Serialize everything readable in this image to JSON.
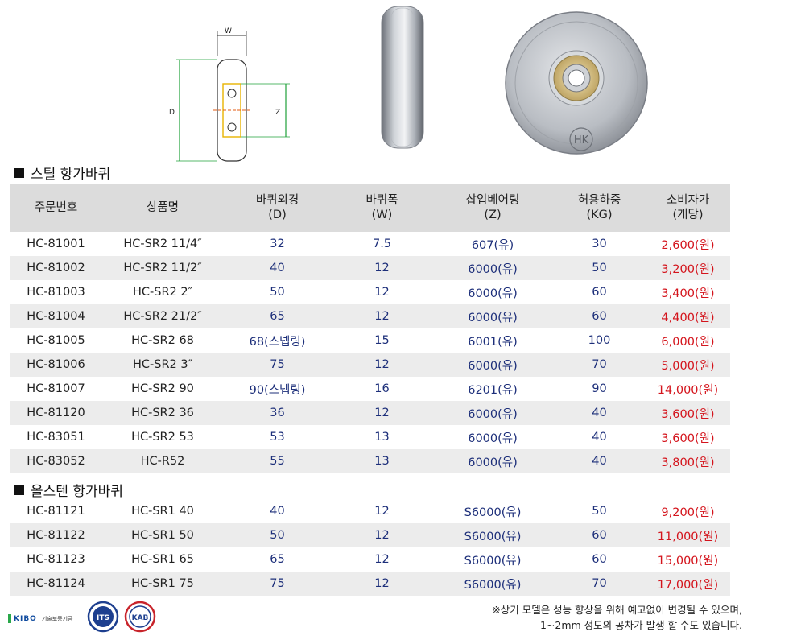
{
  "diagram": {
    "w_label": "W",
    "d_label": "D",
    "z_label": "Z"
  },
  "photo": {
    "logo_text": "HK"
  },
  "section1": {
    "title": "스틸 항가바퀴"
  },
  "section2": {
    "title": "올스텐 항가바퀴"
  },
  "headers": [
    {
      "line1": "주문번호",
      "line2": ""
    },
    {
      "line1": "상품명",
      "line2": ""
    },
    {
      "line1": "바퀴외경",
      "line2": "(D)"
    },
    {
      "line1": "바퀴폭",
      "line2": "(W)"
    },
    {
      "line1": "삽입베어링",
      "line2": "(Z)"
    },
    {
      "line1": "허용하중",
      "line2": "(KG)"
    },
    {
      "line1": "소비자가",
      "line2": "(개당)"
    }
  ],
  "steel_rows": [
    {
      "code": "HC-81001",
      "name": "HC-SR2 11/4″",
      "d": "32",
      "w": "7.5",
      "z": "607(유)",
      "kg": "30",
      "price": "2,600(원)"
    },
    {
      "code": "HC-81002",
      "name": "HC-SR2 11/2″",
      "d": "40",
      "w": "12",
      "z": "6000(유)",
      "kg": "50",
      "price": "3,200(원)"
    },
    {
      "code": "HC-81003",
      "name": "HC-SR2 2″",
      "d": "50",
      "w": "12",
      "z": "6000(유)",
      "kg": "60",
      "price": "3,400(원)"
    },
    {
      "code": "HC-81004",
      "name": "HC-SR2 21/2″",
      "d": "65",
      "w": "12",
      "z": "6000(유)",
      "kg": "60",
      "price": "4,400(원)"
    },
    {
      "code": "HC-81005",
      "name": "HC-SR2 68",
      "d": "68(스넵링)",
      "w": "15",
      "z": "6001(유)",
      "kg": "100",
      "price": "6,000(원)"
    },
    {
      "code": "HC-81006",
      "name": "HC-SR2 3″",
      "d": "75",
      "w": "12",
      "z": "6000(유)",
      "kg": "70",
      "price": "5,000(원)"
    },
    {
      "code": "HC-81007",
      "name": "HC-SR2 90",
      "d": "90(스넵링)",
      "w": "16",
      "z": "6201(유)",
      "kg": "90",
      "price": "14,000(원)"
    },
    {
      "code": "HC-81120",
      "name": "HC-SR2 36",
      "d": "36",
      "w": "12",
      "z": "6000(유)",
      "kg": "40",
      "price": "3,600(원)"
    },
    {
      "code": "HC-83051",
      "name": "HC-SR2 53",
      "d": "53",
      "w": "13",
      "z": "6000(유)",
      "kg": "40",
      "price": "3,600(원)"
    },
    {
      "code": "HC-83052",
      "name": "HC-R52",
      "d": "55",
      "w": "13",
      "z": "6000(유)",
      "kg": "40",
      "price": "3,800(원)"
    }
  ],
  "stainless_rows": [
    {
      "code": "HC-81121",
      "name": "HC-SR1 40",
      "d": "40",
      "w": "12",
      "z": "S6000(유)",
      "kg": "50",
      "price": "9,200(원)"
    },
    {
      "code": "HC-81122",
      "name": "HC-SR1 50",
      "d": "50",
      "w": "12",
      "z": "S6000(유)",
      "kg": "60",
      "price": "11,000(원)"
    },
    {
      "code": "HC-81123",
      "name": "HC-SR1 65",
      "d": "65",
      "w": "12",
      "z": "S6000(유)",
      "kg": "60",
      "price": "15,000(원)"
    },
    {
      "code": "HC-81124",
      "name": "HC-SR1 75",
      "d": "75",
      "w": "12",
      "z": "S6000(유)",
      "kg": "70",
      "price": "17,000(원)"
    }
  ],
  "note": {
    "line1": "※상기 모델은 성능 향상을 위해 예고없이 변경될 수 있으며,",
    "line2": "1~2mm 정도의 공차가 발생 할 수도 있습니다."
  },
  "logos": {
    "kibo": "KIBO",
    "kibo_sub": "기술보증기금",
    "its": "ITS",
    "kab": "KAB"
  },
  "colors": {
    "header_bg": "#dcdcdc",
    "row_alt": "#ececec",
    "value_blue": "#1d2f7a",
    "price_red": "#d4141c"
  }
}
